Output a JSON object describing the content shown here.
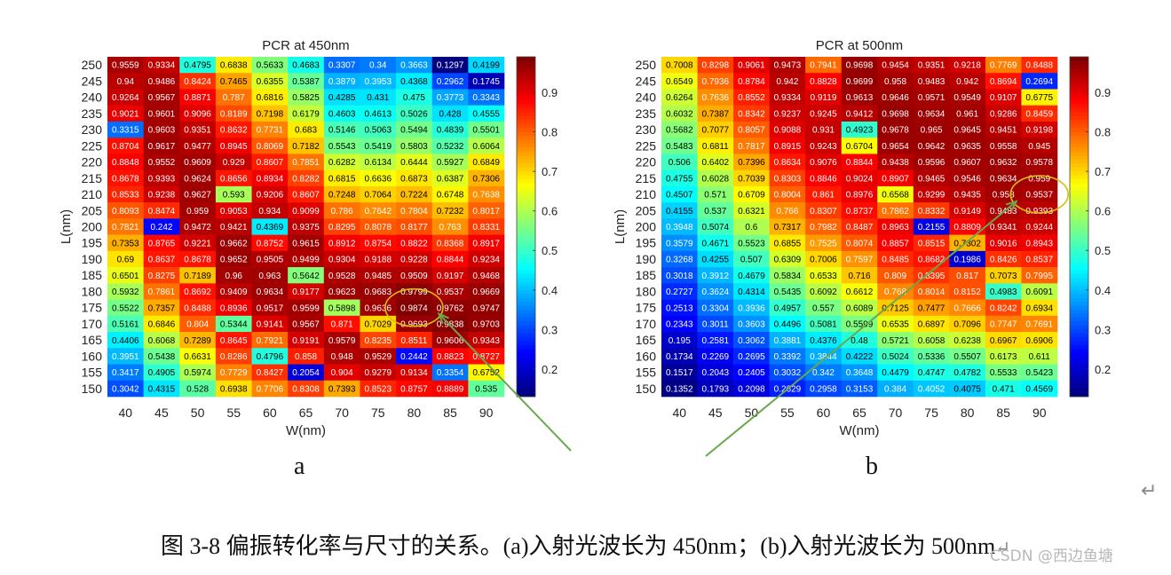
{
  "figure": {
    "caption": "图 3-8 偏振转化率与尺寸的关系。(a)入射光波长为 450nm；(b)入射光波长为 500nm",
    "caption_end_mark": "↵",
    "return_mark": "↵",
    "watermark": "CSDN @西边鱼塘",
    "panel_a_letter": "a",
    "panel_b_letter": "b"
  },
  "chart_data": [
    {
      "type": "heatmap",
      "title": "PCR at 450nm",
      "xlabel": "W(nm)",
      "ylabel": "L(nm)",
      "x": [
        40,
        45,
        50,
        55,
        60,
        65,
        70,
        75,
        80,
        85,
        90
      ],
      "y": [
        250,
        245,
        240,
        235,
        230,
        225,
        220,
        215,
        210,
        205,
        200,
        195,
        190,
        185,
        180,
        175,
        170,
        165,
        160,
        155,
        150
      ],
      "values": [
        [
          "0.9559",
          "0.9334",
          "0.4795",
          "0.6838",
          "0.5633",
          "0.4683",
          "0.3307",
          "0.34",
          "0.3663",
          "0.1297",
          "0.4199"
        ],
        [
          "0.94",
          "0.9486",
          "0.8424",
          "0.7465",
          "0.6355",
          "0.5387",
          "0.3879",
          "0.3953",
          "0.4368",
          "0.2962",
          "0.1745"
        ],
        [
          "0.9264",
          "0.9567",
          "0.8871",
          "0.787",
          "0.6816",
          "0.5825",
          "0.4285",
          "0.431",
          "0.475",
          "0.3773",
          "0.3343"
        ],
        [
          "0.9021",
          "0.9601",
          "0.9096",
          "0.8189",
          "0.7198",
          "0.6179",
          "0.4603",
          "0.4613",
          "0.5026",
          "0.428",
          "0.4555"
        ],
        [
          "0.3315",
          "0.9603",
          "0.9351",
          "0.8632",
          "0.7731",
          "0.683",
          "0.5146",
          "0.5063",
          "0.5494",
          "0.4839",
          "0.5501"
        ],
        [
          "0.8704",
          "0.9617",
          "0.9477",
          "0.8945",
          "0.8069",
          "0.7182",
          "0.5543",
          "0.5419",
          "0.5803",
          "0.5232",
          "0.6064"
        ],
        [
          "0.8848",
          "0.9552",
          "0.9609",
          "0.929",
          "0.8607",
          "0.7851",
          "0.6282",
          "0.6134",
          "0.6444",
          "0.5927",
          "0.6849"
        ],
        [
          "0.8678",
          "0.9393",
          "0.9624",
          "0.8656",
          "0.8934",
          "0.8282",
          "0.6815",
          "0.6636",
          "0.6873",
          "0.6387",
          "0.7306"
        ],
        [
          "0.8533",
          "0.9238",
          "0.9627",
          "0.593",
          "0.9206",
          "0.8607",
          "0.7248",
          "0.7064",
          "0.7224",
          "0.6748",
          "0.7638"
        ],
        [
          "0.8093",
          "0.8474",
          "0.959",
          "0.9053",
          "0.934",
          "0.9099",
          "0.786",
          "0.7642",
          "0.7804",
          "0.7232",
          "0.8017"
        ],
        [
          "0.7821",
          "0.242",
          "0.9472",
          "0.9421",
          "0.4369",
          "0.9375",
          "0.8295",
          "0.8078",
          "0.8177",
          "0.763",
          "0.8331"
        ],
        [
          "0.7353",
          "0.8765",
          "0.9221",
          "0.9662",
          "0.8752",
          "0.9615",
          "0.8912",
          "0.8754",
          "0.8822",
          "0.8368",
          "0.8917"
        ],
        [
          "0.69",
          "0.8637",
          "0.8678",
          "0.9652",
          "0.9505",
          "0.9499",
          "0.9304",
          "0.9188",
          "0.9228",
          "0.8844",
          "0.9234"
        ],
        [
          "0.6501",
          "0.8275",
          "0.7189",
          "0.96",
          "0.963",
          "0.5642",
          "0.9528",
          "0.9485",
          "0.9509",
          "0.9197",
          "0.9468"
        ],
        [
          "0.5932",
          "0.7861",
          "0.8692",
          "0.9409",
          "0.9634",
          "0.9177",
          "0.9623",
          "0.9683",
          "0.9799",
          "0.9537",
          "0.9669"
        ],
        [
          "0.5522",
          "0.7357",
          "0.8488",
          "0.8936",
          "0.9517",
          "0.9599",
          "0.5898",
          "0.9636",
          "0.9874",
          "0.9762",
          "0.9747"
        ],
        [
          "0.5161",
          "0.6846",
          "0.804",
          "0.5344",
          "0.9141",
          "0.9567",
          "0.871",
          "0.7029",
          "0.9693",
          "0.9838",
          "0.9703"
        ],
        [
          "0.4406",
          "0.6068",
          "0.7289",
          "0.8645",
          "0.7921",
          "0.9191",
          "0.9579",
          "0.8235",
          "0.8511",
          "0.9606",
          "0.9343"
        ],
        [
          "0.3951",
          "0.5438",
          "0.6631",
          "0.8286",
          "0.4796",
          "0.858",
          "0.948",
          "0.9529",
          "0.2442",
          "0.8823",
          "0.8727"
        ],
        [
          "0.3417",
          "0.4905",
          "0.5974",
          "0.7729",
          "0.8427",
          "0.2054",
          "0.904",
          "0.9279",
          "0.9134",
          "0.3354",
          "0.6752"
        ],
        [
          "0.3042",
          "0.4315",
          "0.528",
          "0.6938",
          "0.7706",
          "0.8308",
          "0.7393",
          "0.8523",
          "0.8757",
          "0.8889",
          "0.535"
        ]
      ],
      "colormap": "jet",
      "clim": [
        0.13,
        0.99
      ],
      "colorbar_ticks": [
        "0.2",
        "0.3",
        "0.4",
        "0.5",
        "0.6",
        "0.7",
        "0.8",
        "0.9"
      ],
      "highlight": {
        "x": 80,
        "y": 175,
        "value": "0.9874",
        "shape": "ellipse",
        "color": "#d4c20a"
      }
    },
    {
      "type": "heatmap",
      "title": "PCR at 500nm",
      "xlabel": "W(nm)",
      "ylabel": "L(nm)",
      "x": [
        40,
        45,
        50,
        55,
        60,
        65,
        70,
        75,
        80,
        85,
        90
      ],
      "y": [
        250,
        245,
        240,
        235,
        230,
        225,
        220,
        215,
        210,
        205,
        200,
        195,
        190,
        185,
        180,
        175,
        170,
        165,
        160,
        155,
        150
      ],
      "values": [
        [
          "0.7008",
          "0.8298",
          "0.9061",
          "0.9473",
          "0.7941",
          "0.9698",
          "0.9454",
          "0.9351",
          "0.9218",
          "0.7769",
          "0.8488"
        ],
        [
          "0.6549",
          "0.7936",
          "0.8784",
          "0.942",
          "0.8828",
          "0.9699",
          "0.958",
          "0.9483",
          "0.942",
          "0.8694",
          "0.2694"
        ],
        [
          "0.6264",
          "0.7636",
          "0.8552",
          "0.9334",
          "0.9119",
          "0.9613",
          "0.9646",
          "0.9571",
          "0.9549",
          "0.9107",
          "0.6775"
        ],
        [
          "0.6032",
          "0.7387",
          "0.8342",
          "0.9237",
          "0.9245",
          "0.9412",
          "0.9698",
          "0.9634",
          "0.961",
          "0.9286",
          "0.8459"
        ],
        [
          "0.5682",
          "0.7077",
          "0.8057",
          "0.9088",
          "0.931",
          "0.4923",
          "0.9678",
          "0.965",
          "0.9645",
          "0.9451",
          "0.9198"
        ],
        [
          "0.5483",
          "0.6811",
          "0.7817",
          "0.8915",
          "0.9243",
          "0.6704",
          "0.9654",
          "0.9642",
          "0.9635",
          "0.9558",
          "0.945"
        ],
        [
          "0.506",
          "0.6402",
          "0.7396",
          "0.8634",
          "0.9076",
          "0.8844",
          "0.9438",
          "0.9596",
          "0.9607",
          "0.9632",
          "0.9578"
        ],
        [
          "0.4755",
          "0.6028",
          "0.7039",
          "0.8303",
          "0.8846",
          "0.9024",
          "0.8907",
          "0.9465",
          "0.9546",
          "0.9634",
          "0.959"
        ],
        [
          "0.4507",
          "0.571",
          "0.6709",
          "0.8004",
          "0.861",
          "0.8976",
          "0.6568",
          "0.9299",
          "0.9435",
          "0.958",
          "0.9537"
        ],
        [
          "0.4155",
          "0.537",
          "0.6321",
          "0.766",
          "0.8307",
          "0.8737",
          "0.7862",
          "0.8332",
          "0.9149",
          "0.9483",
          "0.9393"
        ],
        [
          "0.3948",
          "0.5074",
          "0.6",
          "0.7317",
          "0.7982",
          "0.8487",
          "0.8963",
          "0.2155",
          "0.8809",
          "0.9341",
          "0.9244"
        ],
        [
          "0.3579",
          "0.4671",
          "0.5523",
          "0.6855",
          "0.7525",
          "0.8074",
          "0.8857",
          "0.8515",
          "0.7302",
          "0.9016",
          "0.8943"
        ],
        [
          "0.3268",
          "0.4255",
          "0.507",
          "0.6309",
          "0.7006",
          "0.7597",
          "0.8485",
          "0.8682",
          "0.1986",
          "0.8426",
          "0.8537"
        ],
        [
          "0.3018",
          "0.3912",
          "0.4679",
          "0.5834",
          "0.6533",
          "0.716",
          "0.809",
          "0.8395",
          "0.817",
          "0.7073",
          "0.7995"
        ],
        [
          "0.2727",
          "0.3624",
          "0.4314",
          "0.5435",
          "0.6092",
          "0.6612",
          "0.768",
          "0.8014",
          "0.8152",
          "0.4983",
          "0.6091"
        ],
        [
          "0.2513",
          "0.3304",
          "0.3936",
          "0.4957",
          "0.557",
          "0.6089",
          "0.7125",
          "0.7477",
          "0.7666",
          "0.8242",
          "0.6934"
        ],
        [
          "0.2343",
          "0.3011",
          "0.3603",
          "0.4496",
          "0.5081",
          "0.5599",
          "0.6535",
          "0.6897",
          "0.7096",
          "0.7747",
          "0.7691"
        ],
        [
          "0.195",
          "0.2581",
          "0.3062",
          "0.3881",
          "0.4376",
          "0.48",
          "0.5721",
          "0.6058",
          "0.6238",
          "0.6967",
          "0.6906"
        ],
        [
          "0.1734",
          "0.2269",
          "0.2695",
          "0.3392",
          "0.3844",
          "0.4222",
          "0.5024",
          "0.5336",
          "0.5507",
          "0.6173",
          "0.611"
        ],
        [
          "0.1517",
          "0.2043",
          "0.2405",
          "0.3032",
          "0.342",
          "0.3648",
          "0.4479",
          "0.4747",
          "0.4782",
          "0.5533",
          "0.5423"
        ],
        [
          "0.1352",
          "0.1793",
          "0.2098",
          "0.2629",
          "0.2958",
          "0.3153",
          "0.384",
          "0.4052",
          "0.4075",
          "0.471",
          "0.4569"
        ]
      ],
      "colormap": "jet",
      "clim": [
        0.13,
        0.99
      ],
      "colorbar_ticks": [
        "0.2",
        "0.3",
        "0.4",
        "0.5",
        "0.6",
        "0.7",
        "0.8",
        "0.9"
      ],
      "highlight": {
        "x": 90,
        "y": 210,
        "value": "0.9537",
        "shape": "ellipse",
        "color": "#d4c20a"
      }
    }
  ],
  "annotations": {
    "arrow_color": "#6aa84f"
  }
}
